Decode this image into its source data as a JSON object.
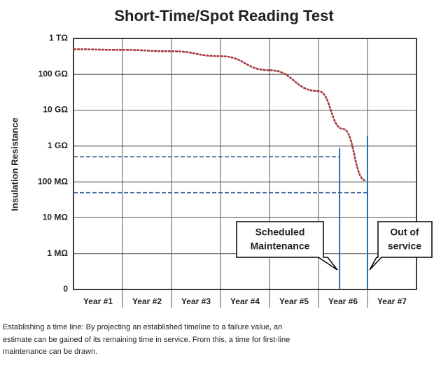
{
  "chart_data": {
    "type": "line",
    "title": "Short-Time/Spot Reading Test",
    "ylabel": "Insulation Resistance",
    "log_y": true,
    "grid": true,
    "categories": [
      "Year #1",
      "Year #2",
      "Year #3",
      "Year #4",
      "Year #5",
      "Year #6",
      "Year #7"
    ],
    "xlim": [
      1,
      8
    ],
    "ylim": [
      100000,
      1000000000000
    ],
    "yticks": [
      {
        "value": 1000000000000,
        "label": "1 TΩ"
      },
      {
        "value": 100000000000,
        "label": "100 GΩ"
      },
      {
        "value": 10000000000,
        "label": "10 GΩ"
      },
      {
        "value": 1000000000,
        "label": "1 GΩ"
      },
      {
        "value": 100000000,
        "label": "100 MΩ"
      },
      {
        "value": 10000000,
        "label": "10 MΩ"
      },
      {
        "value": 1000000,
        "label": "1 MΩ"
      },
      0
    ],
    "series": [
      {
        "color": "#a3343a",
        "x": [
          1,
          2,
          3,
          4,
          5,
          6,
          6.5,
          6.96
        ],
        "values": [
          500000000000,
          480000000000,
          440000000000,
          320000000000,
          130000000000,
          34000000000,
          3000000000,
          110000000
        ]
      }
    ],
    "hlines": [
      500000000,
      50000000
    ],
    "vlines": [
      6.43,
      7.0
    ],
    "annotations": [
      [
        "Scheduled",
        "Maintenance"
      ],
      [
        "Out of",
        "service"
      ]
    ]
  },
  "caption": [
    "Establishing a time line: By projecting an established timeline to a failure value, an",
    "estimate can be gained of its remaining time in service. From this, a time for first-line",
    "maintenance can be drawn."
  ]
}
